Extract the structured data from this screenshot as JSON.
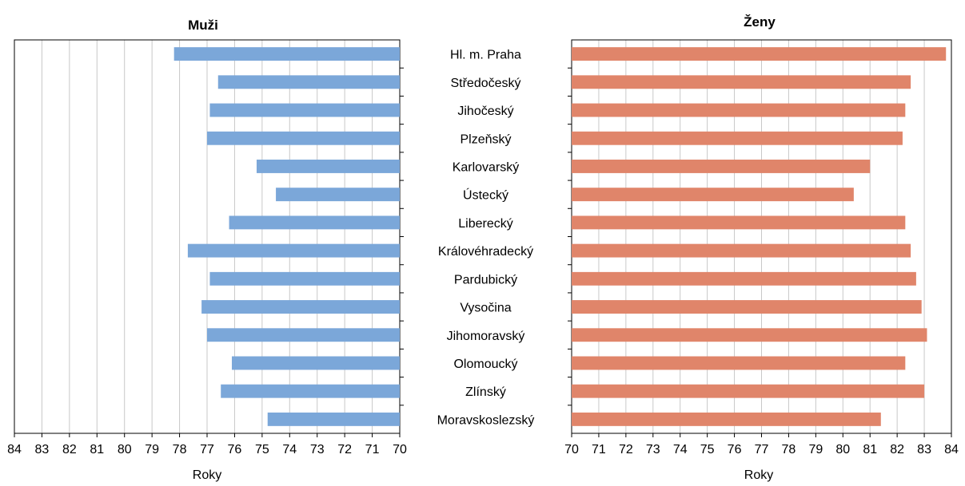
{
  "chart_data": [
    {
      "type": "bar",
      "orientation": "horizontal",
      "title": "Muži",
      "xlabel": "Roky",
      "xlim": [
        70,
        84
      ],
      "x_reversed": true,
      "ticks": [
        84,
        83,
        82,
        81,
        80,
        79,
        78,
        77,
        76,
        75,
        74,
        73,
        72,
        71,
        70
      ],
      "grid": true,
      "color": "#7ba7d9",
      "categories": [
        "Hl. m. Praha",
        "Středočeský",
        "Jihočeský",
        "Plzeňský",
        "Karlovarský",
        "Ústecký",
        "Liberecký",
        "Královéhradecký",
        "Pardubický",
        "Vysočina",
        "Jihomoravský",
        "Olomoucký",
        "Zlínský",
        "Moravskoslezský"
      ],
      "values": [
        78.2,
        76.6,
        76.9,
        77.0,
        75.2,
        74.5,
        76.2,
        77.7,
        76.9,
        77.2,
        77.0,
        76.1,
        76.5,
        74.8
      ]
    },
    {
      "type": "bar",
      "orientation": "horizontal",
      "title": "Ženy",
      "xlabel": "Roky",
      "xlim": [
        70,
        84
      ],
      "x_reversed": false,
      "ticks": [
        70,
        71,
        72,
        73,
        74,
        75,
        76,
        77,
        78,
        79,
        80,
        81,
        82,
        83,
        84
      ],
      "grid": true,
      "color": "#e0856a",
      "categories": [
        "Hl. m. Praha",
        "Středočeský",
        "Jihočeský",
        "Plzeňský",
        "Karlovarský",
        "Ústecký",
        "Liberecký",
        "Královéhradecký",
        "Pardubický",
        "Vysočina",
        "Jihomoravský",
        "Olomoucký",
        "Zlínský",
        "Moravskoslezský"
      ],
      "values": [
        83.8,
        82.5,
        82.3,
        82.2,
        81.0,
        80.4,
        82.3,
        82.5,
        82.7,
        82.9,
        83.1,
        82.3,
        83.0,
        81.4
      ]
    }
  ]
}
